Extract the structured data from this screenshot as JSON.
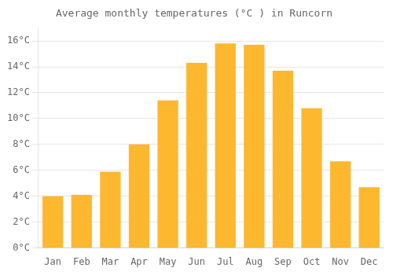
{
  "chart_data": {
    "type": "bar",
    "title": "Average monthly temperatures (°C ) in Runcorn",
    "categories": [
      "Jan",
      "Feb",
      "Mar",
      "Apr",
      "May",
      "Jun",
      "Jul",
      "Aug",
      "Sep",
      "Oct",
      "Nov",
      "Dec"
    ],
    "values": [
      4.0,
      4.1,
      5.9,
      8.0,
      11.4,
      14.3,
      15.8,
      15.7,
      13.7,
      10.8,
      6.7,
      4.7
    ],
    "color": "#FDB830",
    "ylim": [
      0,
      17
    ],
    "yticks": [
      {
        "value": 0,
        "label": "0°C"
      },
      {
        "value": 2,
        "label": "2°C"
      },
      {
        "value": 4,
        "label": "4°C"
      },
      {
        "value": 6,
        "label": "6°C"
      },
      {
        "value": 8,
        "label": "8°C"
      },
      {
        "value": 10,
        "label": "10°C"
      },
      {
        "value": 12,
        "label": "12°C"
      },
      {
        "value": 14,
        "label": "14°C"
      },
      {
        "value": 16,
        "label": "16°C"
      }
    ],
    "grid": true
  }
}
